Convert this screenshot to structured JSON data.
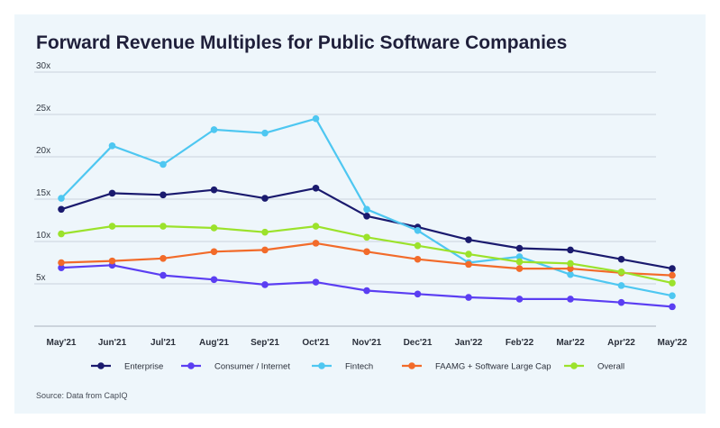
{
  "title": "Forward Revenue Multiples for Public Software Companies",
  "source": "Source: Data from CapIQ",
  "chart_data": {
    "type": "line",
    "title": "Forward Revenue Multiples for Public Software Companies",
    "xlabel": "",
    "ylabel": "",
    "categories": [
      "May'21",
      "Jun'21",
      "Jul'21",
      "Aug'21",
      "Sep'21",
      "Oct'21",
      "Nov'21",
      "Dec'21",
      "Jan'22",
      "Feb'22",
      "Mar'22",
      "Apr'22",
      "May'22"
    ],
    "yticks": [
      "30x",
      "25x",
      "20x",
      "15x",
      "10x",
      "5x"
    ],
    "ytick_values": [
      30,
      25,
      20,
      15,
      10,
      5
    ],
    "ylim": [
      0,
      30
    ],
    "grid": true,
    "legend_position": "bottom",
    "series": [
      {
        "name": "Enterprise",
        "color": "#1a1a6e",
        "values": [
          13.8,
          15.7,
          15.5,
          16.1,
          15.1,
          16.3,
          13.0,
          11.7,
          10.2,
          9.2,
          9.0,
          7.9,
          6.8
        ]
      },
      {
        "name": "Consumer / Internet",
        "color": "#5b3ef2",
        "values": [
          6.9,
          7.2,
          6.0,
          5.5,
          4.9,
          5.2,
          4.2,
          3.8,
          3.4,
          3.2,
          3.2,
          2.8,
          2.3
        ]
      },
      {
        "name": "Fintech",
        "color": "#4ec7f1",
        "values": [
          15.1,
          21.3,
          19.1,
          23.2,
          22.8,
          24.5,
          13.8,
          11.3,
          7.5,
          8.2,
          6.1,
          4.8,
          3.6
        ]
      },
      {
        "name": "FAAMG + Software Large Cap",
        "color": "#f26b2a",
        "values": [
          7.5,
          7.7,
          8.0,
          8.8,
          9.0,
          9.8,
          8.8,
          7.9,
          7.3,
          6.8,
          6.8,
          6.3,
          6.0
        ]
      },
      {
        "name": "Overall",
        "color": "#9be22b",
        "values": [
          10.9,
          11.8,
          11.8,
          11.6,
          11.1,
          11.8,
          10.5,
          9.5,
          8.5,
          7.6,
          7.4,
          6.4,
          5.1
        ]
      }
    ]
  }
}
